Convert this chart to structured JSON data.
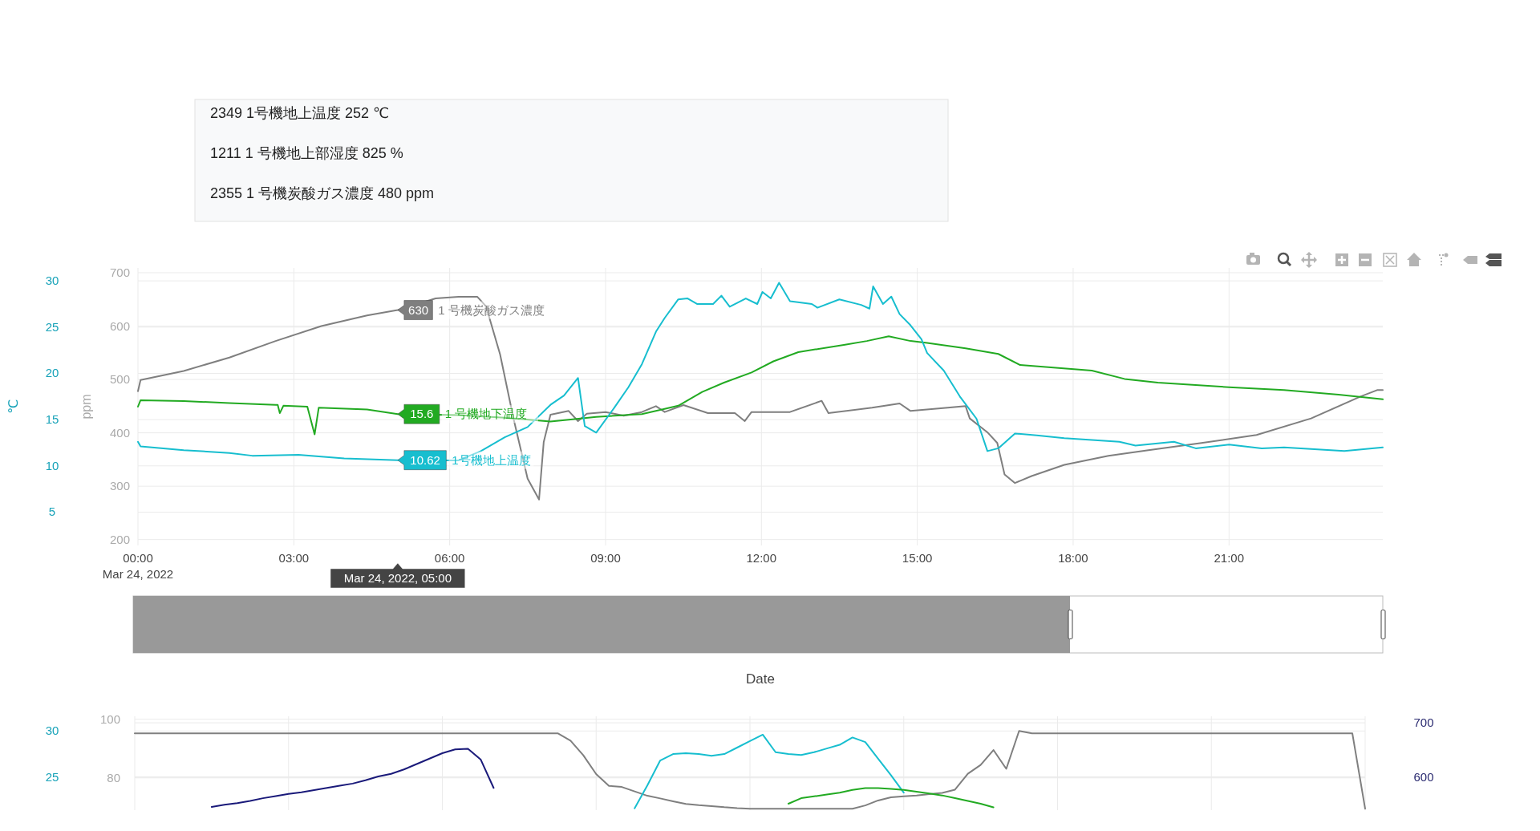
{
  "chart_data": [
    {
      "type": "other",
      "annotations": [
        "2349 1号機地上温度 252 ℃",
        "1211  1 号機地上部湿度 825 %",
        "2355  1 号機炭酸ガス濃度 480 ppm"
      ]
    },
    {
      "type": "line",
      "xlabel": "Date",
      "ylabel": "ppm",
      "y2label": "℃",
      "grid": true,
      "xlim": [
        0,
        23.96
      ],
      "xticks": [
        {
          "value": 0,
          "label": "00:00\nMar 24, 2022"
        },
        {
          "value": 3,
          "label": "03:00"
        },
        {
          "value": 6,
          "label": "06:00"
        },
        {
          "value": 9,
          "label": "09:00"
        },
        {
          "value": 12,
          "label": "12:00"
        },
        {
          "value": 15,
          "label": "15:00"
        },
        {
          "value": 18,
          "label": "18:00"
        },
        {
          "value": 21,
          "label": "21:00"
        }
      ],
      "ylim": [
        189,
        709
      ],
      "yticks": [
        200,
        300,
        400,
        500,
        600,
        700
      ],
      "y2lim": [
        1.4,
        31.4
      ],
      "y2ticks": [
        5,
        10,
        15,
        20,
        25,
        30
      ],
      "annotations": [
        "Mar 24, 2022, 05:00"
      ],
      "legend": "center",
      "series": [
        {
          "name": "1 号機炭酸ガス濃度",
          "color": "#7f7f7f",
          "axis": "y",
          "x": [
            0,
            0.05,
            0.88,
            1.76,
            2.65,
            3.53,
            4.41,
            5,
            5.73,
            6.17,
            6.53,
            6.7,
            6.97,
            7.23,
            7.5,
            7.72,
            7.81,
            7.94,
            8.29,
            8.47,
            8.64,
            9,
            9.35,
            9.7,
            9.97,
            10.14,
            10.5,
            10.97,
            11.49,
            11.68,
            11.81,
            12.55,
            13.16,
            13.29,
            14.13,
            14.66,
            14.87,
            15.93,
            16.01,
            16.35,
            16.54,
            16.68,
            16.88,
            17.2,
            17.83,
            18.68,
            19.42,
            20.47,
            21.53,
            22.58,
            23.53,
            23.85,
            23.96
          ],
          "values": [
            478,
            499,
            516,
            541,
            572,
            600,
            620,
            630,
            652,
            655,
            655,
            637,
            547,
            426,
            314,
            275,
            383,
            434,
            441,
            422,
            436,
            439,
            432,
            439,
            450,
            439,
            452,
            437,
            437,
            422,
            439,
            439,
            460,
            437,
            447,
            455,
            441,
            450,
            427,
            401,
            381,
            322,
            306,
            319,
            340,
            357,
            367,
            381,
            396,
            427,
            468,
            480,
            480
          ],
          "value_labels": [
            null,
            null,
            null,
            null,
            null,
            null,
            null,
            "630",
            null,
            null,
            null,
            null,
            null,
            null,
            null,
            null,
            null,
            null,
            null,
            null,
            null,
            null,
            null,
            null,
            null,
            null,
            null,
            null,
            null,
            null,
            null,
            null,
            null,
            null,
            null,
            null,
            null,
            null,
            null,
            null,
            null,
            null,
            null,
            null,
            null,
            null,
            null,
            null,
            null,
            null,
            null,
            null,
            null
          ]
        },
        {
          "name": "1 号機地下温度",
          "color": "#22aa22",
          "axis": "y2",
          "x": [
            0,
            0.05,
            0.88,
            1.76,
            2.65,
            2.69,
            2.73,
            2.8,
            3.26,
            3.4,
            3.48,
            4.41,
            5,
            6.17,
            7.06,
            7.94,
            8.29,
            8.82,
            9.7,
            10.4,
            10.86,
            11.28,
            11.81,
            12.23,
            12.71,
            13.61,
            14.03,
            14.45,
            14.87,
            15.19,
            15.93,
            16.56,
            16.98,
            18.36,
            18.99,
            19.63,
            21,
            22.06,
            23.11,
            23.96
          ],
          "values": [
            16.4,
            17.1,
            17.0,
            16.8,
            16.6,
            16.6,
            15.7,
            16.5,
            16.4,
            13.4,
            16.3,
            16.1,
            15.6,
            15.5,
            15.2,
            14.8,
            15.0,
            15.3,
            15.6,
            16.5,
            18.0,
            19.0,
            20.1,
            21.3,
            22.3,
            23.1,
            23.5,
            24.0,
            23.5,
            23.3,
            22.7,
            22.1,
            20.9,
            20.3,
            19.4,
            19.0,
            18.5,
            18.2,
            17.7,
            17.2
          ],
          "value_labels": [
            null,
            null,
            null,
            null,
            null,
            null,
            null,
            null,
            null,
            null,
            null,
            null,
            "15.6",
            null,
            null,
            null,
            null,
            null,
            null,
            null,
            null,
            null,
            null,
            null,
            null,
            null,
            null,
            null,
            null,
            null,
            null,
            null,
            null,
            null,
            null,
            null,
            null,
            null,
            null,
            null
          ]
        },
        {
          "name": "1号機地上温度",
          "color": "#17becf",
          "axis": "y2",
          "x": [
            0,
            0.05,
            0.88,
            1.76,
            2.2,
            3.09,
            3.97,
            5,
            6.17,
            6.6,
            7.06,
            7.5,
            7.94,
            8.2,
            8.47,
            8.6,
            8.82,
            9.17,
            9.44,
            9.7,
            9.97,
            10.14,
            10.4,
            10.58,
            10.76,
            11.07,
            11.23,
            11.39,
            11.7,
            11.92,
            12.02,
            12.18,
            12.34,
            12.55,
            12.97,
            13.08,
            13.5,
            13.92,
            14.08,
            14.15,
            14.34,
            14.5,
            14.66,
            14.87,
            15.08,
            15.19,
            15.51,
            15.82,
            16.14,
            16.35,
            16.56,
            16.88,
            17.3,
            17.83,
            18.89,
            19.2,
            19.94,
            20.36,
            21,
            21.63,
            22.06,
            23.22,
            23.96
          ],
          "values": [
            12.6,
            12.1,
            11.7,
            11.4,
            11.1,
            11.2,
            10.8,
            10.62,
            10.6,
            11.6,
            13.1,
            14.2,
            16.6,
            17.6,
            19.5,
            14.3,
            13.6,
            16.3,
            18.5,
            21.0,
            24.5,
            26.0,
            28.0,
            28.1,
            27.5,
            27.5,
            28.4,
            27.2,
            28.1,
            27.5,
            28.8,
            28.1,
            29.8,
            27.8,
            27.5,
            27.1,
            28.0,
            27.4,
            27.0,
            29.4,
            27.5,
            28.3,
            26.4,
            25.2,
            23.7,
            22.2,
            20.3,
            17.5,
            15.1,
            11.6,
            11.9,
            13.5,
            13.3,
            13.0,
            12.6,
            12.2,
            12.6,
            11.9,
            12.3,
            11.9,
            12.0,
            11.6,
            12.0
          ],
          "value_labels": [
            null,
            null,
            null,
            null,
            null,
            null,
            null,
            "10.62",
            null,
            null,
            null,
            null,
            null,
            null,
            null,
            null,
            null,
            null,
            null,
            null,
            null,
            null,
            null,
            null,
            null,
            null,
            null,
            null,
            null,
            null,
            null,
            null,
            null,
            null,
            null,
            null,
            null,
            null,
            null,
            null,
            null,
            null,
            null,
            null,
            null,
            null,
            null,
            null,
            null,
            null,
            null,
            null,
            null,
            null,
            null,
            null,
            null,
            null,
            null,
            null,
            null,
            null,
            null
          ]
        }
      ]
    },
    {
      "type": "line",
      "grid": true,
      "tick_labels": "y",
      "categories": [
        null,
        null,
        null,
        null,
        null,
        null,
        null,
        null,
        null,
        null,
        null,
        null,
        null,
        null,
        null,
        null,
        null,
        null,
        null,
        null,
        null,
        null,
        null,
        null,
        null,
        null,
        null,
        null,
        null,
        null,
        null,
        null,
        null,
        null,
        null,
        null,
        null,
        null,
        null,
        null,
        null,
        null,
        null,
        null,
        null,
        null,
        null,
        null,
        null,
        null,
        null,
        null,
        null,
        null,
        null,
        null,
        null,
        null,
        null,
        null,
        null,
        null,
        null,
        null,
        null,
        null,
        null,
        null,
        null,
        null,
        null,
        null,
        null,
        null,
        null,
        null,
        null,
        null,
        null,
        null,
        null,
        null,
        null,
        null,
        null,
        null,
        null,
        null,
        null,
        null,
        null,
        null,
        null,
        null,
        null,
        null,
        null
      ],
      "ylim": [
        69,
        101
      ],
      "yticks": [
        80,
        100
      ],
      "y2lim": [
        21.4,
        31.6
      ],
      "y2ticks": [
        25,
        30
      ],
      "y3lim": [
        539,
        712
      ],
      "y3ticks": [
        600,
        700
      ],
      "series": [
        {
          "color": "#7f7f7f",
          "axis": "y",
          "values": [
            95.2,
            95.2,
            95.2,
            95.2,
            95.2,
            95.2,
            95.2,
            95.2,
            95.2,
            95.2,
            95.2,
            95.2,
            95.2,
            95.2,
            95.2,
            95.2,
            95.2,
            95.2,
            95.2,
            95.2,
            95.2,
            95.2,
            95.2,
            95.2,
            95.2,
            95.2,
            95.2,
            95.2,
            95.2,
            95.2,
            95.2,
            95.2,
            95.2,
            95.2,
            92.7,
            87.7,
            81.3,
            77.3,
            76.9,
            75.4,
            73.9,
            73.0,
            72.0,
            71.1,
            70.7,
            70.4,
            70.0,
            69.7,
            69.5,
            69.5,
            69.5,
            69.5,
            69.5,
            69.5,
            69.5,
            69.5,
            69.5,
            70.6,
            72.3,
            73.4,
            73.7,
            74.0,
            74.5,
            74.9,
            76.0,
            81.4,
            84.4,
            89.5,
            83.1,
            96.0,
            95.2,
            95.2,
            95.2,
            95.2,
            95.2,
            95.2,
            95.2,
            95.2,
            95.2,
            95.2,
            95.2,
            95.2,
            95.2,
            95.2,
            95.2,
            95.2,
            95.2,
            95.2,
            95.2,
            95.2,
            95.2,
            95.2,
            95.2,
            95.2,
            95.2,
            95.2,
            69.5
          ]
        },
        {
          "color": "#1a1a7a",
          "axis": "y3",
          "values": [
            null,
            null,
            null,
            null,
            null,
            null,
            545,
            549,
            552,
            556,
            561,
            565,
            569,
            572,
            576,
            580,
            584,
            588,
            594,
            601,
            606,
            614,
            624,
            634,
            644,
            651,
            652,
            632,
            580,
            null,
            null,
            null,
            null,
            null,
            null,
            null,
            null,
            null,
            null,
            null,
            null,
            null,
            null,
            null,
            null,
            null,
            null,
            null,
            null,
            null,
            null,
            null,
            null,
            null,
            null,
            null,
            null,
            null,
            null,
            null,
            null,
            null,
            null,
            null,
            null,
            null,
            null,
            null,
            null,
            null,
            null,
            null,
            null,
            null,
            null,
            null,
            null,
            null,
            null,
            null,
            null,
            null,
            null,
            null,
            null,
            null,
            null,
            null,
            null,
            null,
            null,
            null,
            null,
            null,
            null,
            null,
            null
          ]
        },
        {
          "color": "#17becf",
          "axis": "y2",
          "values": [
            null,
            null,
            null,
            null,
            null,
            null,
            null,
            null,
            null,
            null,
            null,
            null,
            null,
            null,
            null,
            null,
            null,
            null,
            null,
            null,
            null,
            null,
            null,
            null,
            null,
            null,
            null,
            null,
            null,
            null,
            null,
            null,
            null,
            null,
            null,
            null,
            null,
            null,
            null,
            21.6,
            24.1,
            26.8,
            27.5,
            27.6,
            27.5,
            27.3,
            27.5,
            28.2,
            28.9,
            29.6,
            27.7,
            27.5,
            27.4,
            27.7,
            28.1,
            28.5,
            29.3,
            28.8,
            27.0,
            25.2,
            23.3,
            null,
            null,
            null,
            null,
            null,
            null,
            null,
            null,
            null,
            null,
            null,
            null,
            null,
            null,
            null,
            null,
            null,
            null,
            null,
            null,
            null,
            null,
            null,
            null,
            null,
            null,
            null,
            null,
            null,
            null,
            null,
            null,
            null,
            null,
            null,
            null
          ]
        },
        {
          "color": "#22aa22",
          "axis": "y2",
          "values": [
            null,
            null,
            null,
            null,
            null,
            null,
            null,
            null,
            null,
            null,
            null,
            null,
            null,
            null,
            null,
            null,
            null,
            null,
            null,
            null,
            null,
            null,
            null,
            null,
            null,
            null,
            null,
            null,
            null,
            null,
            null,
            null,
            null,
            null,
            null,
            null,
            null,
            null,
            null,
            null,
            null,
            null,
            null,
            null,
            null,
            null,
            null,
            null,
            null,
            null,
            null,
            22.1,
            22.7,
            22.9,
            23.1,
            23.3,
            23.6,
            23.8,
            23.8,
            23.7,
            23.6,
            23.4,
            23.2,
            23.0,
            22.7,
            22.4,
            22.1,
            21.7,
            null,
            null,
            null,
            null,
            null,
            null,
            null,
            null,
            null,
            null,
            null,
            null,
            null,
            null,
            null,
            null,
            null,
            null,
            null,
            null,
            null,
            null,
            null,
            null,
            null,
            null,
            null,
            null,
            null
          ]
        }
      ]
    }
  ]
}
